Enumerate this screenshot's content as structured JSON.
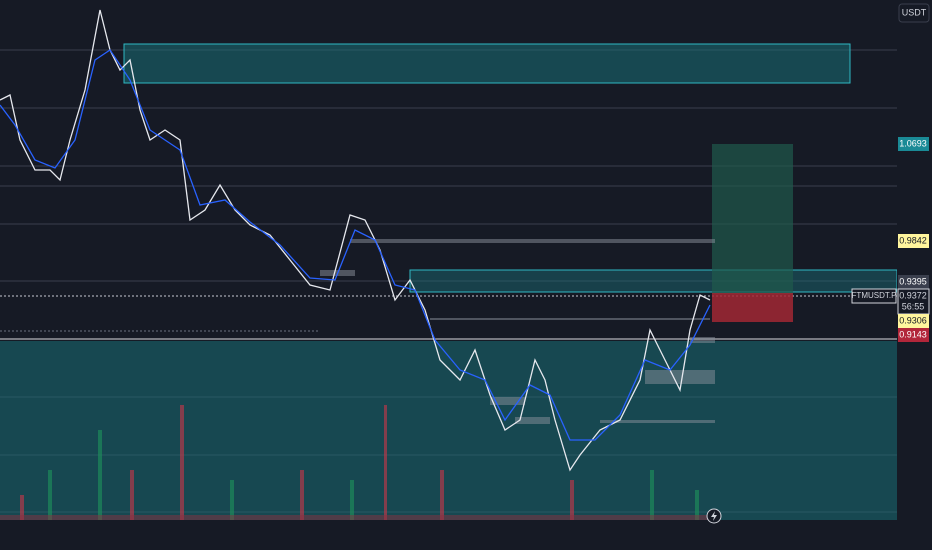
{
  "currency": "USDT",
  "price_labels": {
    "target": "1.0693",
    "level": "0.9842",
    "upper": "0.9395",
    "last": "0.9372",
    "lower": "0.9306",
    "stop": "0.9143"
  },
  "symbol": "FTMUSDT.P",
  "countdown": "56:55"
}
